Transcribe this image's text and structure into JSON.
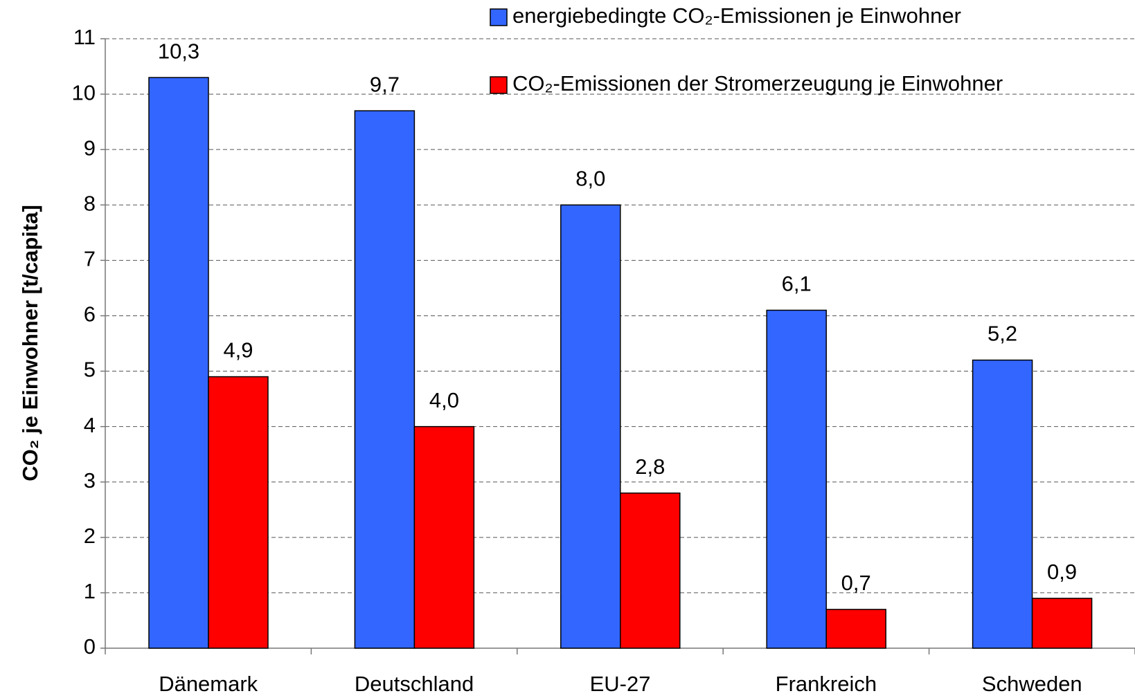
{
  "chart_data": {
    "type": "bar",
    "y_label": "CO₂ je Einwohner [t/capita]",
    "categories": [
      "Dänemark",
      "Deutschland",
      "EU-27",
      "Frankreich",
      "Schweden"
    ],
    "series": [
      {
        "name": "energiebedingte CO₂-Emissionen je Einwohner",
        "color": "#3366ff",
        "values": [
          10.3,
          9.7,
          8.0,
          6.1,
          5.2
        ],
        "value_labels": [
          "10,3",
          "9,7",
          "8,0",
          "6,1",
          "5,2"
        ]
      },
      {
        "name": "CO₂-Emissionen der Stromerzeugung je Einwohner",
        "color": "#ff0000",
        "values": [
          4.9,
          4.0,
          2.8,
          0.7,
          0.9
        ],
        "value_labels": [
          "4,9",
          "4,0",
          "2,8",
          "0,7",
          "0,9"
        ]
      }
    ],
    "ylim": [
      0,
      11
    ],
    "yticks": [
      0,
      1,
      2,
      3,
      4,
      5,
      6,
      7,
      8,
      9,
      10,
      11
    ],
    "grid": true,
    "legend": "top-right"
  }
}
